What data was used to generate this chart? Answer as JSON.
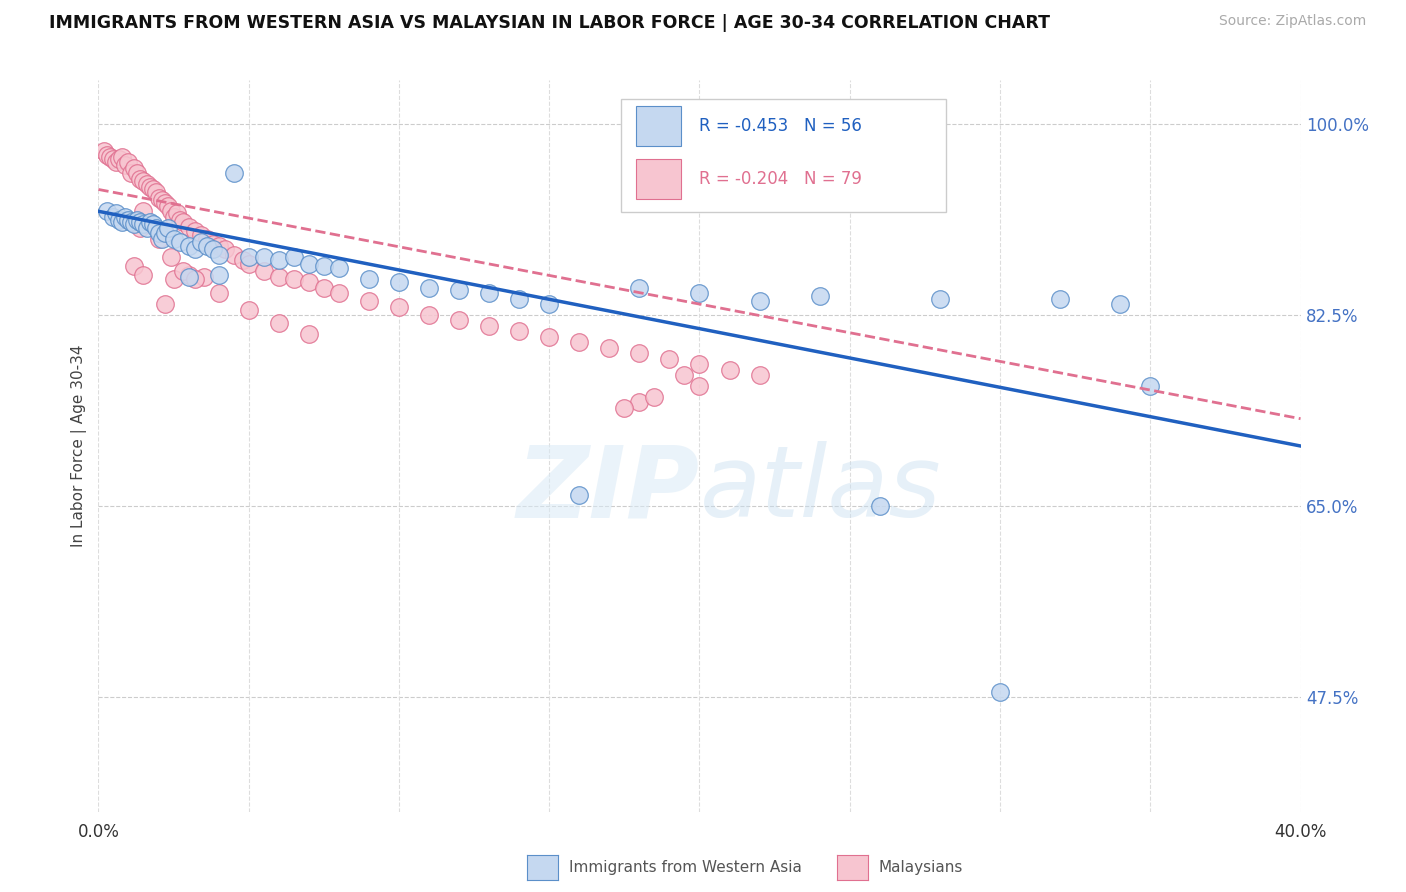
{
  "title": "IMMIGRANTS FROM WESTERN ASIA VS MALAYSIAN IN LABOR FORCE | AGE 30-34 CORRELATION CHART",
  "source": "Source: ZipAtlas.com",
  "ylabel": "In Labor Force | Age 30-34",
  "xlim": [
    0.0,
    0.4
  ],
  "ylim": [
    0.37,
    1.04
  ],
  "xticks": [
    0.0,
    0.05,
    0.1,
    0.15,
    0.2,
    0.25,
    0.3,
    0.35,
    0.4
  ],
  "ytick_positions": [
    0.475,
    0.65,
    0.825,
    1.0
  ],
  "ytick_labels": [
    "47.5%",
    "65.0%",
    "82.5%",
    "100.0%"
  ],
  "r_blue": -0.453,
  "n_blue": 56,
  "r_pink": -0.204,
  "n_pink": 79,
  "blue_fill": "#c5d8f0",
  "blue_edge": "#5b8fc9",
  "pink_fill": "#f7c5d0",
  "pink_edge": "#e07090",
  "trendline_blue": "#2060c0",
  "trendline_pink": "#e07090",
  "watermark_zip": "ZIP",
  "watermark_atlas": "atlas",
  "legend_label_blue": "Immigrants from Western Asia",
  "legend_label_pink": "Malaysians",
  "blue_x": [
    0.003,
    0.005,
    0.006,
    0.007,
    0.008,
    0.009,
    0.01,
    0.011,
    0.012,
    0.013,
    0.014,
    0.015,
    0.016,
    0.017,
    0.018,
    0.019,
    0.02,
    0.021,
    0.022,
    0.023,
    0.025,
    0.027,
    0.03,
    0.032,
    0.034,
    0.036,
    0.038,
    0.04,
    0.045,
    0.05,
    0.055,
    0.06,
    0.065,
    0.07,
    0.075,
    0.08,
    0.09,
    0.1,
    0.11,
    0.12,
    0.13,
    0.14,
    0.15,
    0.16,
    0.18,
    0.2,
    0.22,
    0.24,
    0.26,
    0.28,
    0.3,
    0.32,
    0.34,
    0.35,
    0.03,
    0.04
  ],
  "blue_y": [
    0.92,
    0.915,
    0.918,
    0.912,
    0.91,
    0.915,
    0.912,
    0.91,
    0.908,
    0.912,
    0.91,
    0.908,
    0.905,
    0.91,
    0.908,
    0.905,
    0.9,
    0.895,
    0.9,
    0.905,
    0.895,
    0.892,
    0.888,
    0.885,
    0.892,
    0.888,
    0.885,
    0.88,
    0.955,
    0.878,
    0.878,
    0.875,
    0.878,
    0.872,
    0.87,
    0.868,
    0.858,
    0.855,
    0.85,
    0.848,
    0.845,
    0.84,
    0.835,
    0.66,
    0.85,
    0.845,
    0.838,
    0.842,
    0.65,
    0.84,
    0.48,
    0.84,
    0.835,
    0.76,
    0.86,
    0.862
  ],
  "pink_x": [
    0.002,
    0.003,
    0.004,
    0.005,
    0.006,
    0.007,
    0.008,
    0.009,
    0.01,
    0.011,
    0.012,
    0.013,
    0.014,
    0.015,
    0.016,
    0.017,
    0.018,
    0.019,
    0.02,
    0.021,
    0.022,
    0.023,
    0.024,
    0.025,
    0.026,
    0.027,
    0.028,
    0.03,
    0.032,
    0.034,
    0.036,
    0.038,
    0.04,
    0.042,
    0.045,
    0.048,
    0.05,
    0.055,
    0.06,
    0.065,
    0.07,
    0.075,
    0.08,
    0.09,
    0.1,
    0.11,
    0.12,
    0.13,
    0.14,
    0.15,
    0.16,
    0.17,
    0.18,
    0.19,
    0.2,
    0.21,
    0.22,
    0.03,
    0.025,
    0.035,
    0.015,
    0.02,
    0.012,
    0.014,
    0.022,
    0.024,
    0.028,
    0.032,
    0.022,
    0.015,
    0.04,
    0.05,
    0.06,
    0.07,
    0.195,
    0.2,
    0.18,
    0.175,
    0.185
  ],
  "pink_y": [
    0.975,
    0.972,
    0.97,
    0.968,
    0.965,
    0.968,
    0.97,
    0.962,
    0.965,
    0.955,
    0.96,
    0.955,
    0.95,
    0.948,
    0.945,
    0.942,
    0.94,
    0.938,
    0.932,
    0.93,
    0.928,
    0.925,
    0.92,
    0.915,
    0.918,
    0.912,
    0.91,
    0.906,
    0.902,
    0.898,
    0.895,
    0.89,
    0.888,
    0.885,
    0.88,
    0.875,
    0.872,
    0.865,
    0.86,
    0.858,
    0.855,
    0.85,
    0.845,
    0.838,
    0.832,
    0.825,
    0.82,
    0.815,
    0.81,
    0.805,
    0.8,
    0.795,
    0.79,
    0.785,
    0.78,
    0.775,
    0.77,
    0.862,
    0.858,
    0.86,
    0.92,
    0.895,
    0.87,
    0.905,
    0.9,
    0.878,
    0.865,
    0.858,
    0.835,
    0.862,
    0.845,
    0.83,
    0.818,
    0.808,
    0.77,
    0.76,
    0.745,
    0.74,
    0.75
  ]
}
